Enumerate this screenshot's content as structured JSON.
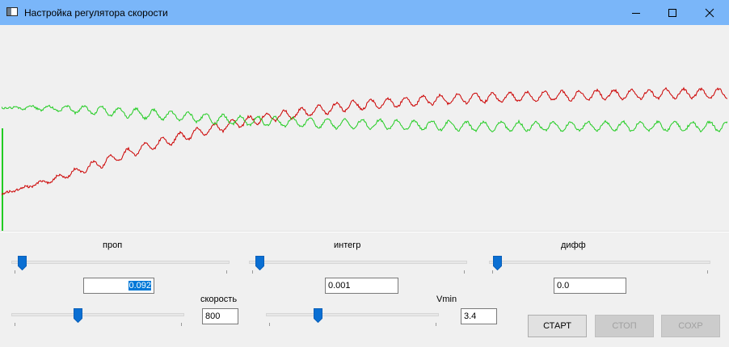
{
  "window": {
    "title": "Настройка регулятора скорости"
  },
  "chart_data": {
    "type": "line",
    "title": "",
    "xlabel": "",
    "ylabel": "",
    "grid": false,
    "series": [
      {
        "color": "#cc0000",
        "values": [
          0.18,
          0.22,
          0.26,
          0.31,
          0.36,
          0.41,
          0.45,
          0.49,
          0.52,
          0.55,
          0.57,
          0.59,
          0.61,
          0.62,
          0.63,
          0.64,
          0.645,
          0.65,
          0.655,
          0.66,
          0.66,
          0.665,
          0.665,
          0.67,
          0.67,
          0.67
        ]
      },
      {
        "color": "#22cc22",
        "values": [
          0.6,
          0.6,
          0.595,
          0.59,
          0.58,
          0.57,
          0.56,
          0.55,
          0.54,
          0.535,
          0.53,
          0.525,
          0.52,
          0.52,
          0.515,
          0.515,
          0.51,
          0.51,
          0.51,
          0.51,
          0.51,
          0.51,
          0.51,
          0.51,
          0.51,
          0.51
        ]
      }
    ]
  },
  "controls": {
    "prop": {
      "label": "проп",
      "value": "0.092",
      "slider": 0.03
    },
    "integr": {
      "label": "интегр",
      "value": "0.001",
      "slider": 0.03
    },
    "diff": {
      "label": "дифф",
      "value": "0.0",
      "slider": 0.02
    },
    "speed": {
      "label": "скорость",
      "value": "800",
      "slider": 0.38
    },
    "vmin": {
      "label": "Vmin",
      "value": "3.4",
      "slider": 0.29
    }
  },
  "buttons": {
    "start": "СТАРТ",
    "stop": "СТОП",
    "save": "СОХР"
  },
  "colors": {
    "titlebar": "#7ab6f9",
    "thumb": "#0a6fd3"
  },
  "icons": {
    "app": "app-icon",
    "minimize": "minimize-icon",
    "maximize": "maximize-icon",
    "close": "close-icon"
  }
}
